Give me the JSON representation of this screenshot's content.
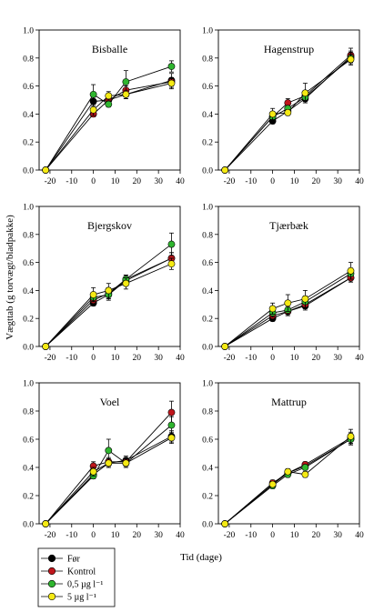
{
  "figure": {
    "ylabel": "Vægttab (g torvægt/bladpakke)",
    "xlabel": "Tid (dage)"
  },
  "legend": {
    "items": [
      {
        "label": "Før",
        "color": "#000000"
      },
      {
        "label": "Kontrol",
        "color": "#c0161c"
      },
      {
        "label": "0,5 µg l⁻¹",
        "color": "#2fb52f"
      },
      {
        "label": "5 µg l⁻¹",
        "color": "#f5ea14"
      }
    ]
  },
  "chart_data": [
    {
      "type": "line",
      "title": "Bisballe",
      "x": [
        -22,
        0,
        7,
        15,
        36
      ],
      "xlim": [
        -25,
        40
      ],
      "ylim": [
        0,
        1.0
      ],
      "xticks": [
        -20,
        -10,
        0,
        10,
        20,
        30,
        40
      ],
      "yticks": [
        0.0,
        0.2,
        0.4,
        0.6,
        0.8,
        1.0
      ],
      "series": [
        {
          "name": "Før",
          "values": [
            0.0,
            0.49,
            0.5,
            0.54,
            0.64
          ],
          "err": [
            0,
            0.03,
            0.03,
            0.03,
            0.05
          ]
        },
        {
          "name": "Kontrol",
          "values": [
            0.0,
            0.4,
            0.5,
            0.57,
            0.63
          ],
          "err": [
            0,
            0.02,
            0.03,
            0.03,
            0.03
          ]
        },
        {
          "name": "0,5 µg l⁻¹",
          "values": [
            0.0,
            0.54,
            0.47,
            0.63,
            0.74
          ],
          "err": [
            0,
            0.07,
            0.02,
            0.08,
            0.04
          ]
        },
        {
          "name": "5 µg l⁻¹",
          "values": [
            0.0,
            0.43,
            0.53,
            0.54,
            0.62
          ],
          "err": [
            0,
            0.04,
            0.03,
            0.03,
            0.04
          ]
        }
      ]
    },
    {
      "type": "line",
      "title": "Hagenstrup",
      "x": [
        -22,
        0,
        7,
        15,
        36
      ],
      "xlim": [
        -25,
        40
      ],
      "ylim": [
        0,
        1.0
      ],
      "xticks": [
        -20,
        -10,
        0,
        10,
        20,
        30,
        40
      ],
      "yticks": [
        0.0,
        0.2,
        0.4,
        0.6,
        0.8,
        1.0
      ],
      "series": [
        {
          "name": "Før",
          "values": [
            0.0,
            0.35,
            0.42,
            0.51,
            0.81
          ],
          "err": [
            0,
            0.02,
            0.02,
            0.03,
            0.04
          ]
        },
        {
          "name": "Kontrol",
          "values": [
            0.0,
            0.38,
            0.48,
            0.53,
            0.82
          ],
          "err": [
            0,
            0.02,
            0.03,
            0.03,
            0.05
          ]
        },
        {
          "name": "0,5 µg l⁻¹",
          "values": [
            0.0,
            0.38,
            0.44,
            0.52,
            0.8
          ],
          "err": [
            0,
            0.02,
            0.02,
            0.03,
            0.04
          ]
        },
        {
          "name": "5 µg l⁻¹",
          "values": [
            0.0,
            0.4,
            0.41,
            0.55,
            0.79
          ],
          "err": [
            0,
            0.04,
            0.02,
            0.07,
            0.04
          ]
        }
      ]
    },
    {
      "type": "line",
      "title": "Bjergskov",
      "x": [
        -22,
        0,
        7,
        15,
        36
      ],
      "xlim": [
        -25,
        40
      ],
      "ylim": [
        0,
        1.0
      ],
      "xticks": [
        -20,
        -10,
        0,
        10,
        20,
        30,
        40
      ],
      "yticks": [
        0.0,
        0.2,
        0.4,
        0.6,
        0.8,
        1.0
      ],
      "series": [
        {
          "name": "Før",
          "values": [
            0.0,
            0.31,
            0.37,
            0.47,
            0.63
          ],
          "err": [
            0,
            0.02,
            0.04,
            0.03,
            0.04
          ]
        },
        {
          "name": "Kontrol",
          "values": [
            0.0,
            0.33,
            0.38,
            0.48,
            0.63
          ],
          "err": [
            0,
            0.02,
            0.04,
            0.03,
            0.04
          ]
        },
        {
          "name": "0,5 µg l⁻¹",
          "values": [
            0.0,
            0.35,
            0.37,
            0.48,
            0.73
          ],
          "err": [
            0,
            0.03,
            0.03,
            0.03,
            0.08
          ]
        },
        {
          "name": "5 µg l⁻¹",
          "values": [
            0.0,
            0.37,
            0.4,
            0.45,
            0.59
          ],
          "err": [
            0,
            0.05,
            0.05,
            0.04,
            0.04
          ]
        }
      ]
    },
    {
      "type": "line",
      "title": "Tjærbæk",
      "x": [
        -22,
        0,
        7,
        15,
        36
      ],
      "xlim": [
        -25,
        40
      ],
      "ylim": [
        0,
        1.0
      ],
      "xticks": [
        -20,
        -10,
        0,
        10,
        20,
        30,
        40
      ],
      "yticks": [
        0.0,
        0.2,
        0.4,
        0.6,
        0.8,
        1.0
      ],
      "series": [
        {
          "name": "Før",
          "values": [
            0.0,
            0.2,
            0.25,
            0.29,
            0.49
          ],
          "err": [
            0,
            0.02,
            0.03,
            0.03,
            0.03
          ]
        },
        {
          "name": "Kontrol",
          "values": [
            0.0,
            0.22,
            0.25,
            0.3,
            0.49
          ],
          "err": [
            0,
            0.02,
            0.03,
            0.03,
            0.03
          ]
        },
        {
          "name": "0,5 µg l⁻¹",
          "values": [
            0.0,
            0.24,
            0.26,
            0.32,
            0.52
          ],
          "err": [
            0,
            0.03,
            0.03,
            0.04,
            0.04
          ]
        },
        {
          "name": "5 µg l⁻¹",
          "values": [
            0.0,
            0.27,
            0.31,
            0.34,
            0.54
          ],
          "err": [
            0,
            0.04,
            0.06,
            0.06,
            0.06
          ]
        }
      ]
    },
    {
      "type": "line",
      "title": "Voel",
      "x": [
        -22,
        0,
        7,
        15,
        36
      ],
      "xlim": [
        -25,
        40
      ],
      "ylim": [
        0,
        1.0
      ],
      "xticks": [
        -20,
        -10,
        0,
        10,
        20,
        30,
        40
      ],
      "yticks": [
        0.0,
        0.2,
        0.4,
        0.6,
        0.8,
        1.0
      ],
      "series": [
        {
          "name": "Før",
          "values": [
            0.0,
            0.35,
            0.43,
            0.45,
            0.62
          ],
          "err": [
            0,
            0.02,
            0.03,
            0.03,
            0.04
          ]
        },
        {
          "name": "Kontrol",
          "values": [
            0.0,
            0.41,
            0.44,
            0.44,
            0.79
          ],
          "err": [
            0,
            0.03,
            0.03,
            0.03,
            0.08
          ]
        },
        {
          "name": "0,5 µg l⁻¹",
          "values": [
            0.0,
            0.34,
            0.52,
            0.43,
            0.7
          ],
          "err": [
            0,
            0.02,
            0.08,
            0.03,
            0.06
          ]
        },
        {
          "name": "5 µg l⁻¹",
          "values": [
            0.0,
            0.37,
            0.43,
            0.43,
            0.61
          ],
          "err": [
            0,
            0.03,
            0.03,
            0.03,
            0.04
          ]
        }
      ]
    },
    {
      "type": "line",
      "title": "Mattrup",
      "x": [
        -22,
        0,
        7,
        15,
        36
      ],
      "xlim": [
        -25,
        40
      ],
      "ylim": [
        0,
        1.0
      ],
      "xticks": [
        -20,
        -10,
        0,
        10,
        20,
        30,
        40
      ],
      "yticks": [
        0.0,
        0.2,
        0.4,
        0.6,
        0.8,
        1.0
      ],
      "series": [
        {
          "name": "Før",
          "values": [
            0.0,
            0.28,
            0.36,
            0.41,
            0.6
          ],
          "err": [
            0,
            0.02,
            0.02,
            0.02,
            0.04
          ]
        },
        {
          "name": "Kontrol",
          "values": [
            0.0,
            0.29,
            0.36,
            0.42,
            0.61
          ],
          "err": [
            0,
            0.02,
            0.02,
            0.02,
            0.04
          ]
        },
        {
          "name": "0,5 µg l⁻¹",
          "values": [
            0.0,
            0.27,
            0.35,
            0.4,
            0.6
          ],
          "err": [
            0,
            0.02,
            0.02,
            0.02,
            0.04
          ]
        },
        {
          "name": "5 µg l⁻¹",
          "values": [
            0.0,
            0.28,
            0.37,
            0.35,
            0.62
          ],
          "err": [
            0,
            0.02,
            0.02,
            0.02,
            0.05
          ]
        }
      ]
    }
  ]
}
